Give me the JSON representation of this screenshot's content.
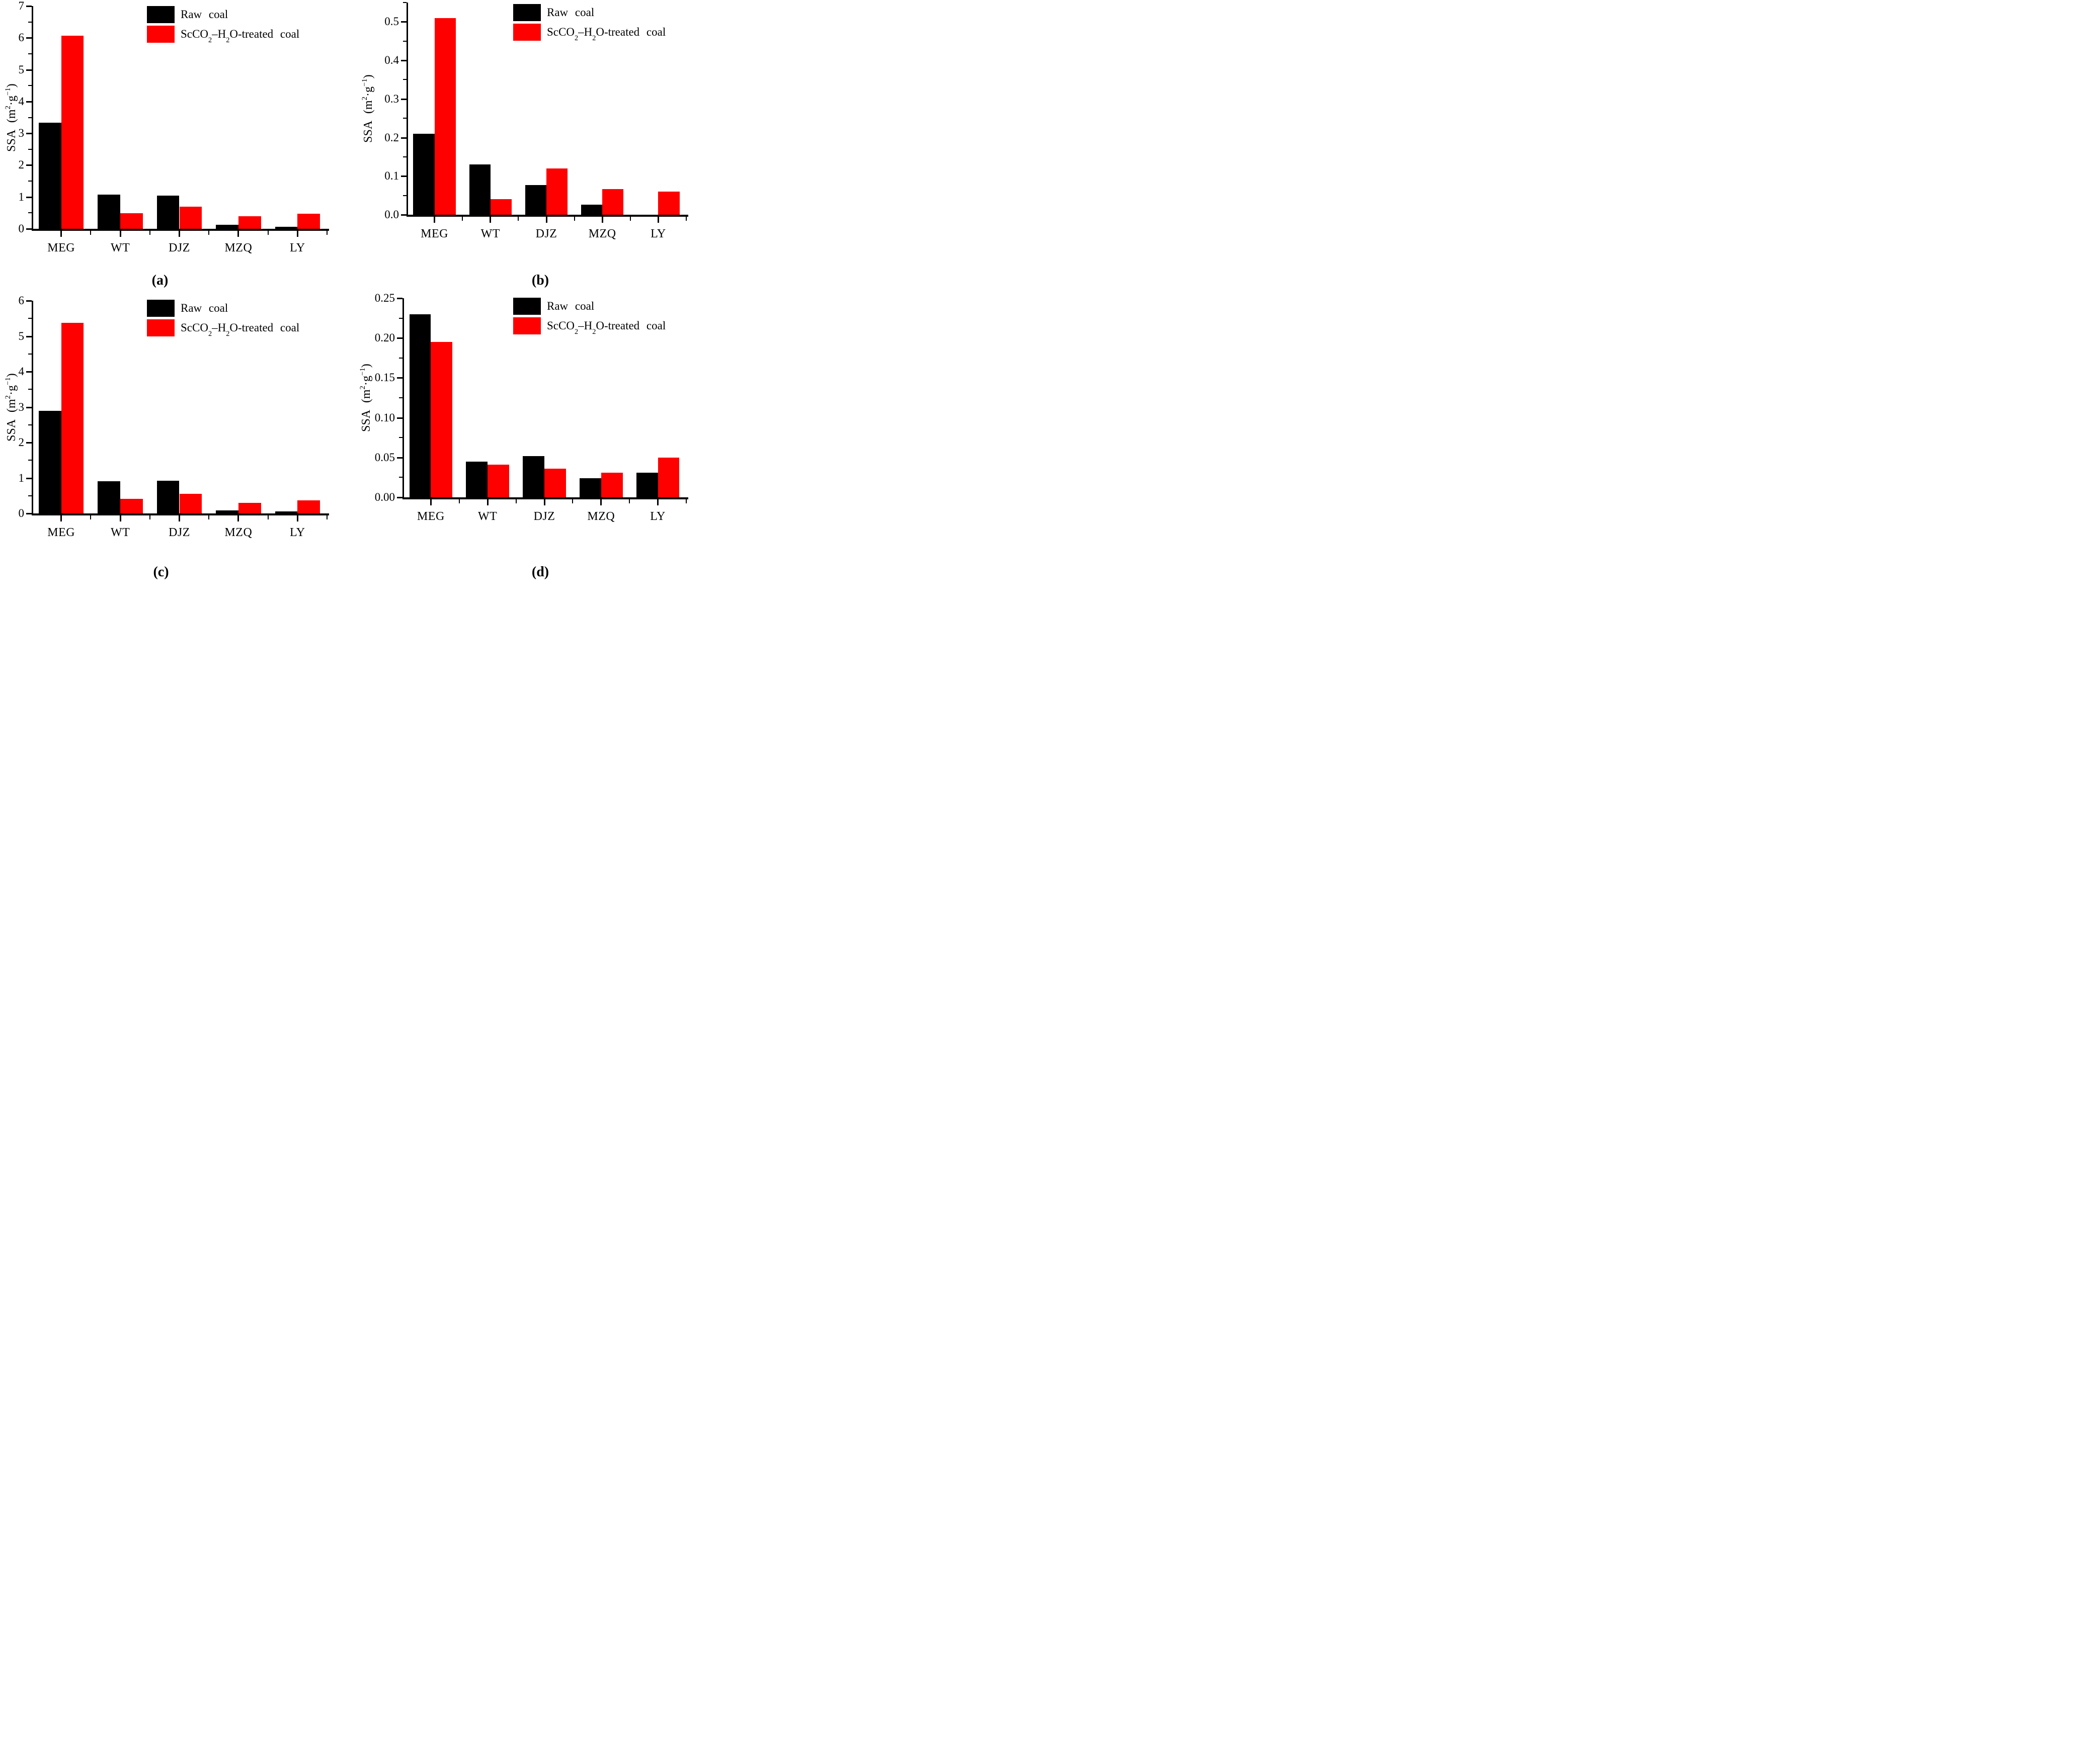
{
  "figure": {
    "background": "#ffffff",
    "legend": {
      "raw_label": "Raw coal",
      "treated_label": "ScCO_2_–H_2_O-treated coal"
    },
    "colors": {
      "raw": "#000000",
      "treated": "#ff0000"
    }
  },
  "chart_data": [
    {
      "id": "a",
      "type": "bar",
      "panel_label": "(a)",
      "ylabel": "SSA (m^2^·g^−1^)",
      "categories": [
        "MEG",
        "WT",
        "DJZ",
        "MZQ",
        "LY"
      ],
      "series": [
        {
          "name": "Raw coal",
          "color": "#000000",
          "values": [
            3.34,
            1.08,
            1.04,
            0.13,
            0.07
          ]
        },
        {
          "name": "ScCO2–H2O-treated coal",
          "color": "#ff0000",
          "values": [
            6.06,
            0.49,
            0.7,
            0.4,
            0.47
          ]
        }
      ],
      "ylim": [
        0,
        7
      ],
      "yticks": [
        "0",
        "1",
        "2",
        "3",
        "4",
        "5",
        "6",
        "7"
      ],
      "ytick_minor": 0.5,
      "grid": false,
      "legend_position": "inside top, right of center"
    },
    {
      "id": "b",
      "type": "bar",
      "panel_label": "(b)",
      "ylabel": "SSA (m^2^·g^−1^)",
      "categories": [
        "MEG",
        "WT",
        "DJZ",
        "MZQ",
        "LY"
      ],
      "series": [
        {
          "name": "Raw coal",
          "color": "#000000",
          "values": [
            0.21,
            0.13,
            0.077,
            0.026,
            0
          ]
        },
        {
          "name": "ScCO2–H2O-treated coal",
          "color": "#ff0000",
          "values": [
            0.51,
            0.04,
            0.12,
            0.067,
            0.06
          ]
        }
      ],
      "ylim": [
        0,
        0.55
      ],
      "yticks": [
        "0.0",
        "0.1",
        "0.2",
        "0.3",
        "0.4",
        "0.5"
      ],
      "ytick_minor": 0.05,
      "grid": false,
      "legend_position": "inside top, right of center"
    },
    {
      "id": "c",
      "type": "bar",
      "panel_label": "(c)",
      "ylabel": "SSA (m^2^·g^−1^)",
      "categories": [
        "MEG",
        "WT",
        "DJZ",
        "MZQ",
        "LY"
      ],
      "series": [
        {
          "name": "Raw coal",
          "color": "#000000",
          "values": [
            2.9,
            0.91,
            0.92,
            0.08,
            0.06
          ]
        },
        {
          "name": "ScCO2–H2O-treated coal",
          "color": "#ff0000",
          "values": [
            5.37,
            0.41,
            0.55,
            0.3,
            0.37
          ]
        }
      ],
      "ylim": [
        0,
        6
      ],
      "yticks": [
        "0",
        "1",
        "2",
        "3",
        "4",
        "5",
        "6"
      ],
      "ytick_minor": 0.5,
      "grid": false,
      "legend_position": "inside top, right of center"
    },
    {
      "id": "d",
      "type": "bar",
      "panel_label": "(d)",
      "ylabel": "SSA (m^2^·g^−1^)",
      "categories": [
        "MEG",
        "WT",
        "DJZ",
        "MZQ",
        "LY"
      ],
      "series": [
        {
          "name": "Raw coal",
          "color": "#000000",
          "values": [
            0.23,
            0.045,
            0.052,
            0.024,
            0.031
          ]
        },
        {
          "name": "ScCO2–H2O-treated coal",
          "color": "#ff0000",
          "values": [
            0.195,
            0.041,
            0.036,
            0.031,
            0.05
          ]
        }
      ],
      "ylim": [
        0,
        0.25
      ],
      "yticks": [
        "0.00",
        "0.05",
        "0.10",
        "0.15",
        "0.20",
        "0.25"
      ],
      "ytick_minor": 0.025,
      "grid": false,
      "legend_position": "inside top, right of center"
    }
  ]
}
